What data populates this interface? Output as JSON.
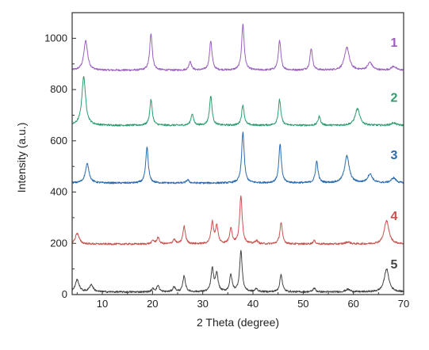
{
  "chart_data": {
    "type": "line",
    "title": "",
    "xlabel": "2 Theta (degree)",
    "ylabel": "Intensity (a.u.)",
    "xlim": [
      4,
      70
    ],
    "ylim": [
      0,
      1100
    ],
    "xticks": [
      10,
      20,
      30,
      40,
      50,
      60,
      70
    ],
    "yticks": [
      0,
      200,
      400,
      600,
      800,
      1000
    ],
    "grid": false,
    "legend": "series numbers printed at right end of each trace",
    "series": [
      {
        "name": "1",
        "color": "#9b5fc0",
        "baseline": 875,
        "peaks": [
          [
            6.7,
            990
          ],
          [
            19.7,
            1020
          ],
          [
            27.5,
            910
          ],
          [
            31.6,
            990
          ],
          [
            38.0,
            1055
          ],
          [
            45.3,
            990
          ],
          [
            51.6,
            960
          ],
          [
            58.7,
            965
          ],
          [
            63.3,
            905
          ],
          [
            68.0,
            890
          ]
        ]
      },
      {
        "name": "2",
        "color": "#2a9d6e",
        "baseline": 660,
        "peaks": [
          [
            6.3,
            850
          ],
          [
            19.7,
            760
          ],
          [
            27.9,
            705
          ],
          [
            31.6,
            775
          ],
          [
            38.0,
            740
          ],
          [
            45.3,
            760
          ],
          [
            53.2,
            695
          ],
          [
            60.8,
            725
          ],
          [
            68.0,
            670
          ]
        ]
      },
      {
        "name": "3",
        "color": "#2a6bb0",
        "baseline": 435,
        "peaks": [
          [
            7.0,
            510
          ],
          [
            18.9,
            575
          ],
          [
            27.0,
            448
          ],
          [
            38.0,
            635
          ],
          [
            45.4,
            585
          ],
          [
            52.7,
            520
          ],
          [
            58.7,
            540
          ],
          [
            63.3,
            470
          ],
          [
            68.0,
            455
          ]
        ]
      },
      {
        "name": "4",
        "color": "#c9524e",
        "baseline": 197,
        "peaks": [
          [
            5.0,
            240
          ],
          [
            20.1,
            210
          ],
          [
            21.1,
            222
          ],
          [
            24.3,
            215
          ],
          [
            26.3,
            265
          ],
          [
            31.9,
            280
          ],
          [
            32.8,
            265
          ],
          [
            35.6,
            258
          ],
          [
            37.6,
            385
          ],
          [
            40.7,
            210
          ],
          [
            45.6,
            280
          ],
          [
            52.2,
            210
          ],
          [
            58.9,
            205
          ],
          [
            66.6,
            290
          ]
        ]
      },
      {
        "name": "5",
        "color": "#444444",
        "baseline": 10,
        "peaks": [
          [
            5.0,
            58
          ],
          [
            7.8,
            38
          ],
          [
            20.1,
            22
          ],
          [
            21.1,
            35
          ],
          [
            24.3,
            30
          ],
          [
            26.3,
            72
          ],
          [
            31.9,
            100
          ],
          [
            32.8,
            80
          ],
          [
            35.6,
            75
          ],
          [
            37.6,
            170
          ],
          [
            40.7,
            22
          ],
          [
            45.6,
            78
          ],
          [
            52.2,
            25
          ],
          [
            58.9,
            20
          ],
          [
            66.6,
            100
          ]
        ]
      }
    ]
  }
}
